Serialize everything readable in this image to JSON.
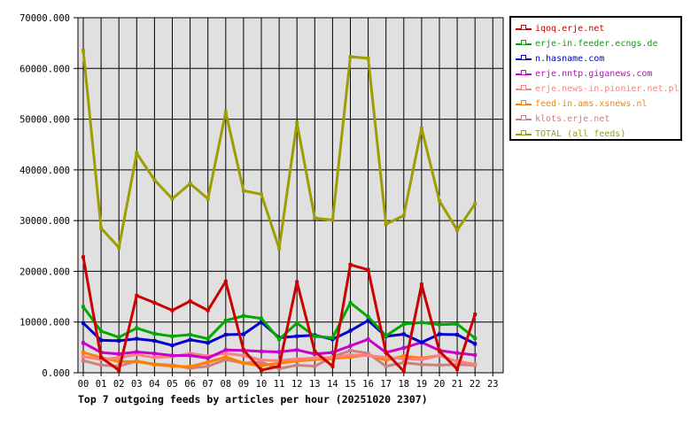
{
  "title": "Top 7 outgoing feeds by articles per hour (20251020 2307)",
  "chart_data": {
    "type": "line",
    "x_tick_labels": [
      "00",
      "01",
      "02",
      "03",
      "04",
      "05",
      "06",
      "07",
      "08",
      "09",
      "10",
      "11",
      "12",
      "13",
      "14",
      "15",
      "16",
      "17",
      "18",
      "19",
      "20",
      "21",
      "22",
      "23"
    ],
    "y_tick_labels": [
      "0.000",
      "10000.000",
      "20000.000",
      "30000.000",
      "40000.000",
      "50000.000",
      "60000.000",
      "70000.000"
    ],
    "ylim": [
      0,
      70000
    ],
    "ytick_step": 10000,
    "plotted_points": 23,
    "grid": true,
    "plot_bg": "#e0e0e0",
    "grid_color": "#000000",
    "legend_position": "outside-top-right",
    "series": [
      {
        "name": "iqoq.erje.net",
        "color": "#cc0000",
        "values": [
          22800,
          3000,
          500,
          15200,
          13800,
          12300,
          14100,
          12300,
          18000,
          4500,
          500,
          1300,
          17900,
          4200,
          1300,
          21300,
          20300,
          4000,
          300,
          17400,
          4300,
          700,
          11500
        ]
      },
      {
        "name": "erje-in.feeder.ecngs.de",
        "color": "#00aa00",
        "values": [
          13000,
          8200,
          7000,
          8800,
          7700,
          7200,
          7500,
          6700,
          10300,
          11200,
          10700,
          6600,
          9800,
          7200,
          6900,
          13800,
          11000,
          7300,
          9600,
          9900,
          9500,
          9600,
          6800
        ]
      },
      {
        "name": "n.hasname.com",
        "color": "#0000cc",
        "values": [
          9800,
          6400,
          6300,
          6700,
          6300,
          5400,
          6500,
          5900,
          7500,
          7600,
          10000,
          6900,
          7200,
          7400,
          6600,
          8300,
          10300,
          7200,
          7600,
          6000,
          7600,
          7500,
          5700
        ]
      },
      {
        "name": "erje.nntp.giganews.com",
        "color": "#cc00cc",
        "values": [
          5900,
          4000,
          3700,
          4100,
          3800,
          3400,
          3400,
          2900,
          4500,
          4400,
          4200,
          4100,
          4500,
          3700,
          4000,
          5300,
          6600,
          4000,
          4900,
          6000,
          4400,
          3900,
          3500
        ]
      },
      {
        "name": "erje.news-in.pionier.net.pl",
        "color": "#ff8080",
        "values": [
          3200,
          2600,
          3000,
          3600,
          3000,
          3200,
          3800,
          3300,
          3800,
          3400,
          2500,
          2400,
          2700,
          2900,
          3000,
          3500,
          3400,
          3000,
          2800,
          2600,
          3400,
          2200,
          1700
        ]
      },
      {
        "name": "feed-in.ams.xsnews.nl",
        "color": "#ff8000",
        "values": [
          4000,
          3000,
          2200,
          2200,
          1600,
          1300,
          1200,
          2100,
          3100,
          1900,
          1400,
          1900,
          2300,
          2600,
          2800,
          3100,
          3500,
          2500,
          3300,
          2900,
          3400,
          2200,
          1700
        ]
      },
      {
        "name": "klots.erje.net",
        "color": "#cc8080",
        "values": [
          2400,
          1500,
          1300,
          2300,
          1700,
          1500,
          900,
          1300,
          2600,
          1900,
          2100,
          800,
          1500,
          1300,
          3100,
          4400,
          3800,
          1300,
          2000,
          1600,
          1500,
          1600,
          1500
        ]
      },
      {
        "name": "TOTAL (all feeds)",
        "color": "#9e9e00",
        "values": [
          63500,
          28500,
          24700,
          43300,
          38000,
          34300,
          37300,
          34300,
          51400,
          35900,
          35200,
          24500,
          49300,
          30500,
          30100,
          62300,
          62000,
          29300,
          31000,
          48200,
          33900,
          28100,
          33300
        ]
      }
    ]
  }
}
